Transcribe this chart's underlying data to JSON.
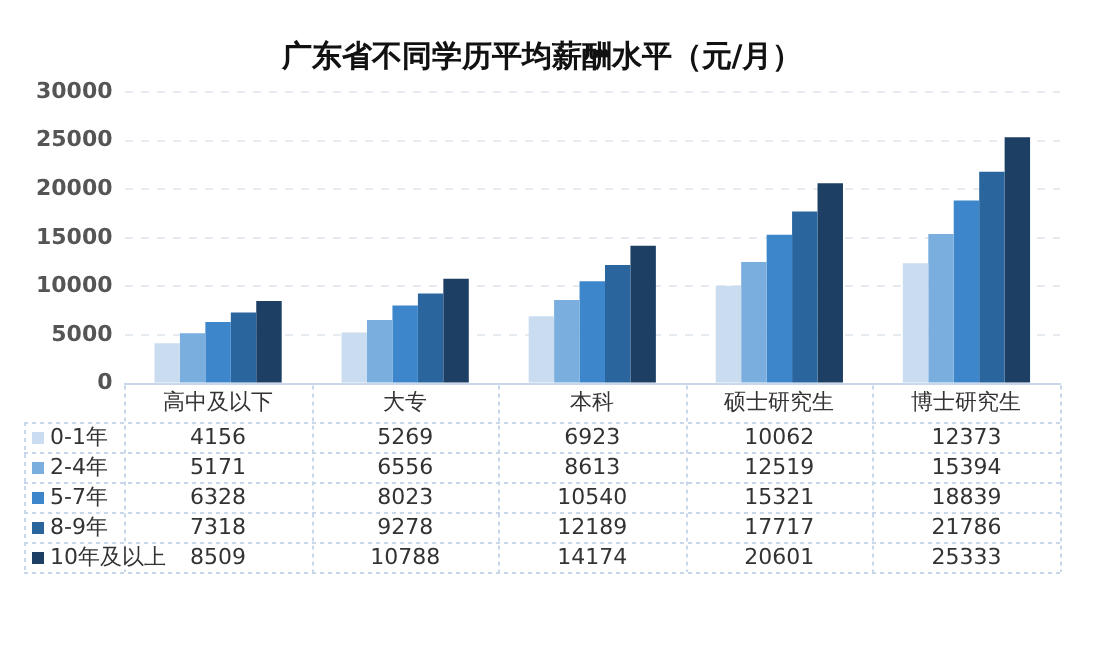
{
  "chart_data": {
    "type": "bar",
    "title": "广东省不同学历平均薪酬水平（元/月）",
    "categories": [
      "高中及以下",
      "大专",
      "本科",
      "硕士研究生",
      "博士研究生"
    ],
    "series": [
      {
        "name": "0-1年",
        "color": "#c9dcf0",
        "values": [
          4156,
          5269,
          6923,
          10062,
          12373
        ]
      },
      {
        "name": "2-4年",
        "color": "#7aaedf",
        "values": [
          5171,
          6556,
          8613,
          12519,
          15394
        ]
      },
      {
        "name": "5-7年",
        "color": "#3d86cc",
        "values": [
          6328,
          8023,
          10540,
          15321,
          18839
        ]
      },
      {
        "name": "8-9年",
        "color": "#2a659e",
        "values": [
          7318,
          9278,
          12189,
          17717,
          21786
        ]
      },
      {
        "name": "10年及以上",
        "color": "#1d3f63",
        "values": [
          8509,
          10788,
          14174,
          20601,
          25333
        ]
      }
    ],
    "ylim": [
      0,
      30000
    ],
    "yticks": [
      0,
      5000,
      10000,
      15000,
      20000,
      25000,
      30000
    ],
    "grid": "y",
    "legend": "bottom",
    "data_labels": true
  }
}
